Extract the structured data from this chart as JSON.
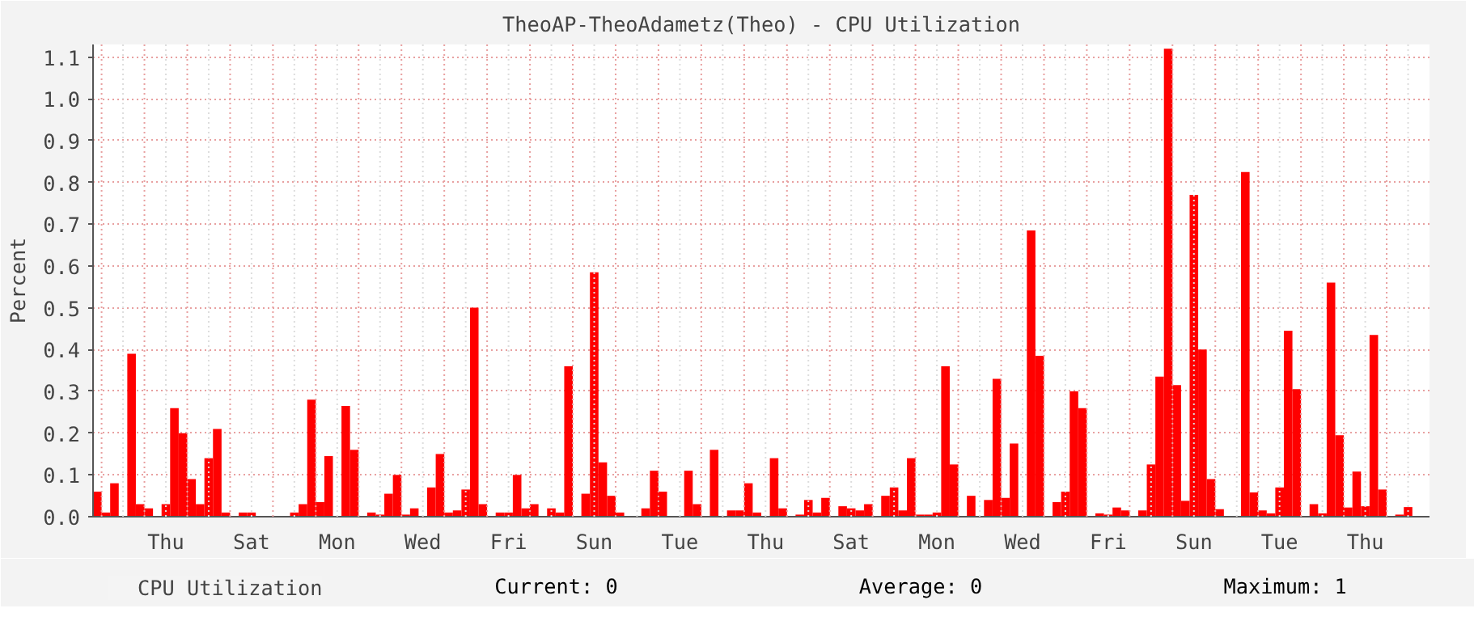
{
  "chart_data": {
    "type": "bar",
    "title": "TheoAP-TheoAdametz(Theo) - CPU Utilization",
    "ylabel": "Percent",
    "categories": [
      null,
      null,
      null,
      null,
      null,
      null,
      null,
      null,
      "Thu",
      null,
      null,
      null,
      null,
      null,
      null,
      null,
      null,
      null,
      "Sat",
      null,
      null,
      null,
      null,
      null,
      null,
      null,
      null,
      null,
      "Mon",
      null,
      null,
      null,
      null,
      null,
      null,
      null,
      null,
      null,
      "Wed",
      null,
      null,
      null,
      null,
      null,
      null,
      null,
      null,
      null,
      "Fri",
      null,
      null,
      null,
      null,
      null,
      null,
      null,
      null,
      null,
      "Sun",
      null,
      null,
      null,
      null,
      null,
      null,
      null,
      null,
      null,
      "Tue",
      null,
      null,
      null,
      null,
      null,
      null,
      null,
      null,
      null,
      "Thu",
      null,
      null,
      null,
      null,
      null,
      null,
      null,
      null,
      null,
      "Sat",
      null,
      null,
      null,
      null,
      null,
      null,
      null,
      null,
      null,
      "Mon",
      null,
      null,
      null,
      null,
      null,
      null,
      null,
      null,
      null,
      "Wed",
      null,
      null,
      null,
      null,
      null,
      null,
      null,
      null,
      null,
      "Fri",
      null,
      null,
      null,
      null,
      null,
      null,
      null,
      null,
      null,
      "Sun",
      null,
      null,
      null,
      null,
      null,
      null,
      null,
      null,
      null,
      "Tue",
      null,
      null,
      null,
      null,
      null,
      null,
      null,
      null,
      null,
      "Thu",
      null,
      null,
      null,
      null,
      null,
      null
    ],
    "series": [
      {
        "name": "CPU Utilization",
        "color": "#ff0000",
        "values": [
          0.06,
          0.01,
          0.08,
          0,
          0.39,
          0.03,
          0.02,
          0,
          0.03,
          0.26,
          0.2,
          0.09,
          0.03,
          0.14,
          0.21,
          0.01,
          0,
          0.01,
          0.01,
          0,
          0,
          0,
          0,
          0.01,
          0.03,
          0.28,
          0.035,
          0.145,
          0,
          0.265,
          0.16,
          0,
          0.01,
          0.005,
          0.055,
          0.1,
          0.005,
          0.02,
          0,
          0.07,
          0.15,
          0.01,
          0.015,
          0.065,
          0.5,
          0.03,
          0,
          0.01,
          0.01,
          0.1,
          0.02,
          0.03,
          0,
          0.02,
          0.01,
          0.36,
          0,
          0.055,
          0.585,
          0.13,
          0.05,
          0.01,
          0,
          0,
          0.02,
          0.11,
          0.06,
          0,
          0,
          0.11,
          0.03,
          0,
          0.16,
          0,
          0.015,
          0.015,
          0.08,
          0.01,
          0,
          0.14,
          0.02,
          0,
          0.005,
          0.04,
          0.01,
          0.045,
          0,
          0.025,
          0.02,
          0.015,
          0.03,
          0,
          0.05,
          0.07,
          0.015,
          0.14,
          0.005,
          0.005,
          0.01,
          0.36,
          0.125,
          0,
          0.05,
          0,
          0.04,
          0.33,
          0.045,
          0.175,
          0,
          0.685,
          0.385,
          0,
          0.035,
          0.06,
          0.3,
          0.26,
          0,
          0.008,
          0.005,
          0.022,
          0.015,
          0,
          0.015,
          0.125,
          0.335,
          1.12,
          0.315,
          0.038,
          0.77,
          0.4,
          0.09,
          0.018,
          0,
          0,
          0.825,
          0.058,
          0.015,
          0.008,
          0.07,
          0.445,
          0.305,
          0,
          0.03,
          0.008,
          0.56,
          0.195,
          0.022,
          0.108,
          0.025,
          0.435,
          0.065,
          0,
          0.005,
          0.023,
          0
        ]
      }
    ],
    "ylim": [
      0,
      1.13
    ],
    "yticks": [
      {
        "value": 0,
        "label": "0.0"
      },
      {
        "value": 0.1,
        "label": "0.1"
      },
      {
        "value": 0.2,
        "label": "0.2"
      },
      {
        "value": 0.3,
        "label": "0.3"
      },
      {
        "value": 0.4,
        "label": "0.4"
      },
      {
        "value": 0.5,
        "label": "0.5"
      },
      {
        "value": 0.6,
        "label": "0.6"
      },
      {
        "value": 0.7,
        "label": "0.7"
      },
      {
        "value": 0.8,
        "label": "0.8"
      },
      {
        "value": 0.9,
        "label": "0.9"
      },
      {
        "value": 1.0,
        "label": "1.0"
      },
      {
        "value": 1.1,
        "label": "1.1"
      }
    ],
    "grid": true,
    "legend": "bottom",
    "annotations": [
      "Current:          0",
      "Average:          0",
      "Maximum:          1"
    ]
  }
}
